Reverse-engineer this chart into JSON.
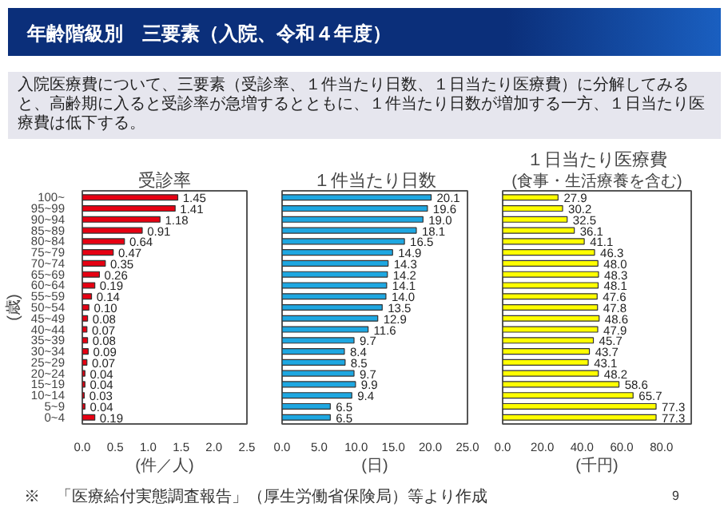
{
  "chart_data": [
    {
      "type": "bar",
      "orientation": "horizontal",
      "title": "受診率",
      "ylabel": "(歳)",
      "xlabel": "(件／人)",
      "categories": [
        "100~",
        "95~99",
        "90~94",
        "85~89",
        "80~84",
        "75~79",
        "70~74",
        "65~69",
        "60~64",
        "55~59",
        "50~54",
        "45~49",
        "40~44",
        "35~39",
        "30~34",
        "25~29",
        "20~24",
        "15~19",
        "10~14",
        "5~9",
        "0~4"
      ],
      "values": [
        1.45,
        1.41,
        1.18,
        0.91,
        0.64,
        0.47,
        0.35,
        0.26,
        0.19,
        0.14,
        0.1,
        0.08,
        0.07,
        0.08,
        0.09,
        0.07,
        0.04,
        0.04,
        0.03,
        0.04,
        0.19
      ],
      "value_labels": [
        "1.45",
        "1.41",
        "1.18",
        "0.91",
        "0.64",
        "0.47",
        "0.35",
        "0.26",
        "0.19",
        "0.14",
        "0.10",
        "0.08",
        "0.07",
        "0.08",
        "0.09",
        "0.07",
        "0.04",
        "0.04",
        "0.03",
        "0.04",
        "0.19"
      ],
      "color": "#e60012",
      "xlim": [
        0,
        2.5
      ],
      "xticks": [
        {
          "value": 0,
          "label": "0.0"
        },
        {
          "value": 0.5,
          "label": "0.5"
        },
        {
          "value": 1,
          "label": "1.0"
        },
        {
          "value": 1.5,
          "label": "1.5"
        },
        {
          "value": 2,
          "label": "2.0"
        },
        {
          "value": 2.5,
          "label": "2.5"
        }
      ],
      "annotations": [
        "年齢階級別　三要素（入院、令和４年度）",
        "入院医療費について、三要素（受診率、１件当たり日数、１日当たり医療費）に分解してみると、高齢期に入ると受診率が急増するとともに、１件当たり日数が増加する一方、１日当たり医療費は低下する。",
        "※　「医療給付実態調査報告」（厚生労働省保険局）等より作成"
      ]
    },
    {
      "type": "bar",
      "orientation": "horizontal",
      "title": "１件当たり日数",
      "xlabel": "(日)",
      "tick_labels": "x",
      "values": [
        20.1,
        19.6,
        19.0,
        18.1,
        16.5,
        14.9,
        14.3,
        14.2,
        14.1,
        14.0,
        13.5,
        12.9,
        11.6,
        9.7,
        8.4,
        8.5,
        9.7,
        9.9,
        9.4,
        6.5,
        6.5
      ],
      "value_labels": [
        "20.1",
        "19.6",
        "19.0",
        "18.1",
        "16.5",
        "14.9",
        "14.3",
        "14.2",
        "14.1",
        "14.0",
        "13.5",
        "12.9",
        "11.6",
        "9.7",
        "8.4",
        "8.5",
        "9.7",
        "9.9",
        "9.4",
        "6.5",
        "6.5"
      ],
      "color": "#1ea7e1",
      "xlim": [
        0,
        25
      ],
      "xticks": [
        {
          "value": 0,
          "label": "0.0"
        },
        {
          "value": 5,
          "label": "5.0"
        },
        {
          "value": 10,
          "label": "10.0"
        },
        {
          "value": 15,
          "label": "15.0"
        },
        {
          "value": 20,
          "label": "20.0"
        },
        {
          "value": 25,
          "label": "25.0"
        }
      ]
    },
    {
      "type": "bar",
      "orientation": "horizontal",
      "title": "１日当たり医療費",
      "subtitle": "(食事・生活療養を含む)",
      "xlabel": "(千円)",
      "tick_labels": "x",
      "values": [
        27.9,
        30.2,
        32.5,
        36.1,
        41.1,
        46.3,
        48.0,
        48.3,
        48.1,
        47.6,
        47.8,
        48.6,
        47.9,
        45.7,
        43.7,
        43.1,
        48.2,
        58.6,
        65.7,
        77.3,
        77.3
      ],
      "value_labels": [
        "27.9",
        "30.2",
        "32.5",
        "36.1",
        "41.1",
        "46.3",
        "48.0",
        "48.3",
        "48.1",
        "47.6",
        "47.8",
        "48.6",
        "47.9",
        "45.7",
        "43.7",
        "43.1",
        "48.2",
        "58.6",
        "65.7",
        "77.3",
        "77.3"
      ],
      "color": "#ffff00",
      "xlim": [
        0,
        95
      ],
      "xticks": [
        {
          "value": 0,
          "label": "0.0"
        },
        {
          "value": 20,
          "label": "20.0"
        },
        {
          "value": 40,
          "label": "40.0"
        },
        {
          "value": 60,
          "label": "60.0"
        },
        {
          "value": 80,
          "label": "80.0"
        }
      ],
      "annotations": [
        "9"
      ]
    }
  ]
}
